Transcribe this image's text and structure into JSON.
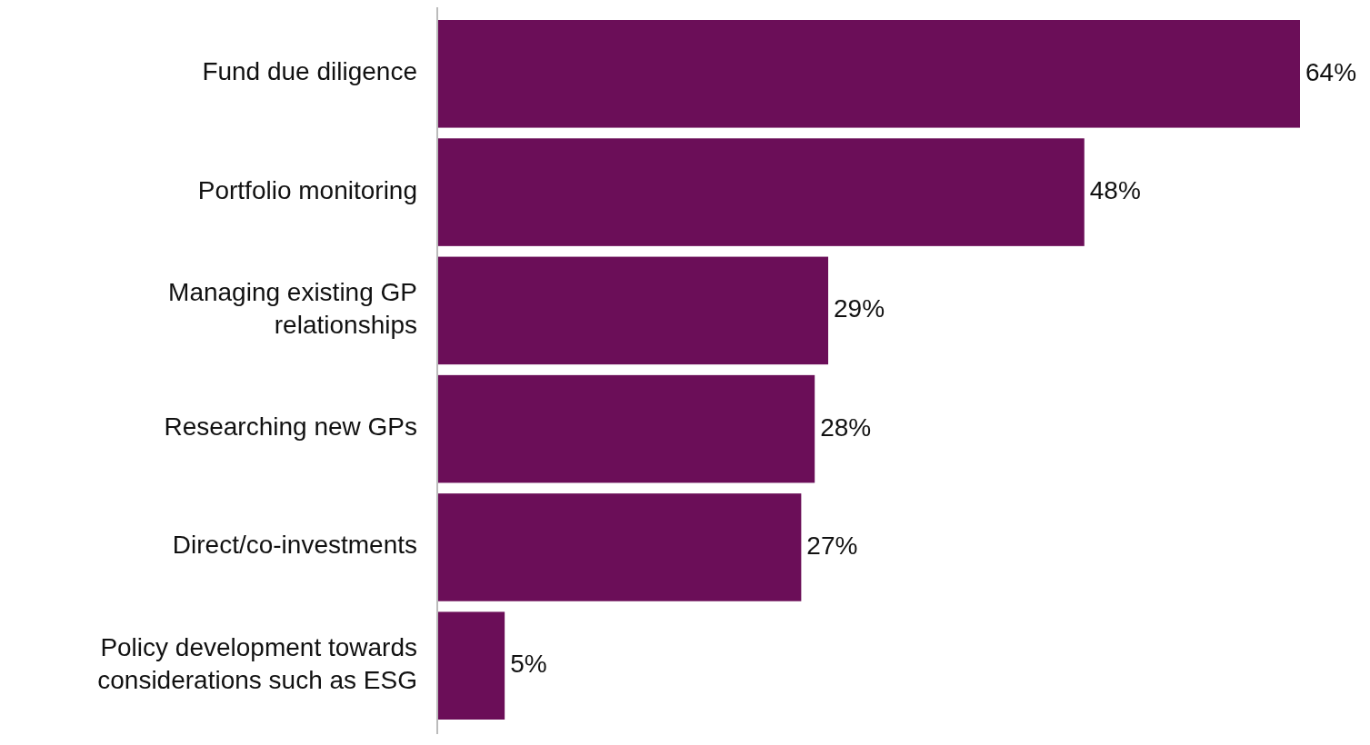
{
  "chart_data": {
    "type": "bar",
    "orientation": "horizontal",
    "categories": [
      "Fund due diligence",
      "Portfolio monitoring",
      "Managing existing GP relationships",
      "Researching new GPs",
      "Direct/co-investments",
      "Policy development towards considerations such as ESG"
    ],
    "values": [
      64,
      48,
      29,
      28,
      27,
      5
    ],
    "value_labels": [
      "64%",
      "48%",
      "29%",
      "28%",
      "27%",
      "5%"
    ],
    "color": "#6b0e58"
  }
}
